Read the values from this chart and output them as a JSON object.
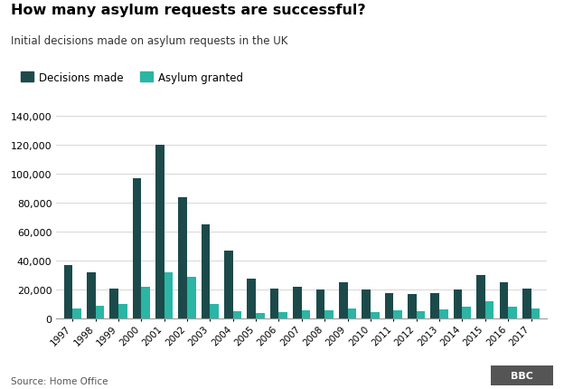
{
  "title": "How many asylum requests are successful?",
  "subtitle": "Initial decisions made on asylum requests in the UK",
  "years": [
    1997,
    1998,
    1999,
    2000,
    2001,
    2002,
    2003,
    2004,
    2005,
    2006,
    2007,
    2008,
    2009,
    2010,
    2011,
    2012,
    2013,
    2014,
    2015,
    2016,
    2017
  ],
  "decisions_made": [
    37000,
    32000,
    21000,
    97000,
    120000,
    84000,
    65000,
    47000,
    28000,
    21000,
    22000,
    20000,
    25000,
    20000,
    18000,
    17000,
    18000,
    20000,
    30000,
    25000,
    21000
  ],
  "asylum_granted": [
    7000,
    9000,
    10000,
    22000,
    32000,
    29000,
    10000,
    5500,
    4000,
    4500,
    6000,
    6000,
    7000,
    4500,
    6000,
    5500,
    6500,
    8500,
    12000,
    8500,
    7000
  ],
  "color_decisions": "#1c4a4a",
  "color_granted": "#2ab5a5",
  "ylim": [
    0,
    140000
  ],
  "yticks": [
    0,
    20000,
    40000,
    60000,
    80000,
    100000,
    120000,
    140000
  ],
  "source": "Source: Home Office",
  "legend_decisions": "Decisions made",
  "legend_granted": "Asylum granted",
  "background_color": "#ffffff",
  "grid_color": "#d0d0d0"
}
